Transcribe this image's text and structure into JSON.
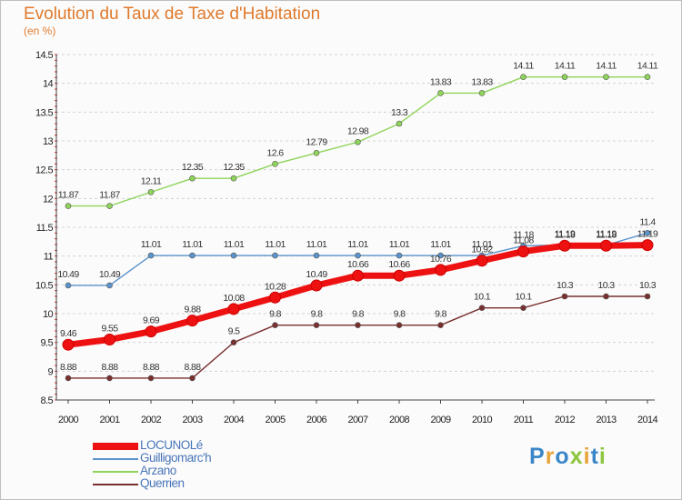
{
  "brand": {
    "letters": [
      {
        "ch": "P",
        "color": "#3a86c8"
      },
      {
        "ch": "r",
        "color": "#e8a33a"
      },
      {
        "ch": "o",
        "color": "#3a86c8"
      },
      {
        "ch": "x",
        "color": "#8cc63f"
      },
      {
        "ch": "i",
        "color": "#e8a33a"
      },
      {
        "ch": "t",
        "color": "#3a86c8"
      },
      {
        "ch": "i",
        "color": "#8cc63f"
      }
    ]
  },
  "chart_data": {
    "type": "line",
    "title": "Evolution du Taux de Taxe d'Habitation",
    "subtitle": "(en %)",
    "xlabel": "",
    "ylabel": "",
    "x": [
      2000,
      2001,
      2002,
      2003,
      2004,
      2005,
      2006,
      2007,
      2008,
      2009,
      2010,
      2011,
      2012,
      2013,
      2014
    ],
    "ylim": [
      8.5,
      14.5
    ],
    "yticks": [
      8.5,
      9,
      9.5,
      10,
      10.5,
      11,
      11.5,
      12,
      12.5,
      13,
      13.5,
      14,
      14.5
    ],
    "ytick_labels": [
      "8.5",
      "9",
      "9.5",
      "10",
      "10.5",
      "11",
      "11.5",
      "12",
      "12.5",
      "13",
      "13.5",
      "14",
      "14.5"
    ],
    "grid": "horizontal dashed",
    "legend_position": "bottom-left",
    "series": [
      {
        "name": "LOCUNOLé",
        "color": "#ee1111",
        "values": [
          9.46,
          9.55,
          9.69,
          9.88,
          10.08,
          10.28,
          10.49,
          10.66,
          10.66,
          10.76,
          10.92,
          11.08,
          11.18,
          11.18,
          11.19
        ],
        "labels": [
          "9.46",
          "9.55",
          "9.69",
          "9.88",
          "10.08",
          "10.28",
          "10.49",
          "10.66",
          "10.66",
          "10.76",
          "10.92",
          "11.08",
          "11.18",
          "11.18",
          "11.19"
        ]
      },
      {
        "name": "Guilligomarc'h",
        "color": "#5b94cc",
        "values": [
          10.49,
          10.49,
          11.01,
          11.01,
          11.01,
          11.01,
          11.01,
          11.01,
          11.01,
          11.01,
          11.01,
          11.18,
          11.19,
          11.19,
          11.4
        ],
        "labels": [
          "10.49",
          "10.49",
          "11.01",
          "11.01",
          "11.01",
          "11.01",
          "11.01",
          "11.01",
          "11.01",
          "11.01",
          "11.01",
          "11.18",
          "11.19",
          "11.19",
          "11.4"
        ]
      },
      {
        "name": "Arzano",
        "color": "#8fd45a",
        "values": [
          11.87,
          11.87,
          12.11,
          12.35,
          12.35,
          12.6,
          12.79,
          12.98,
          13.3,
          13.83,
          13.83,
          14.11,
          14.11,
          14.11,
          14.11
        ],
        "labels": [
          "11.87",
          "11.87",
          "12.11",
          "12.35",
          "12.35",
          "12.6",
          "12.79",
          "12.98",
          "13.3",
          "13.83",
          "13.83",
          "14.11",
          "14.11",
          "14.11",
          "14.11"
        ]
      },
      {
        "name": "Querrien",
        "color": "#7a2f2f",
        "values": [
          8.88,
          8.88,
          8.88,
          8.88,
          9.5,
          9.8,
          9.8,
          9.8,
          9.8,
          9.8,
          10.1,
          10.1,
          10.3,
          10.3,
          10.3
        ],
        "labels": [
          "8.88",
          "8.88",
          "8.88",
          "8.88",
          "9.5",
          "9.8",
          "9.8",
          "9.8",
          "9.8",
          "9.8",
          "10.1",
          "10.1",
          "10.3",
          "10.3",
          "10.3"
        ]
      }
    ]
  }
}
